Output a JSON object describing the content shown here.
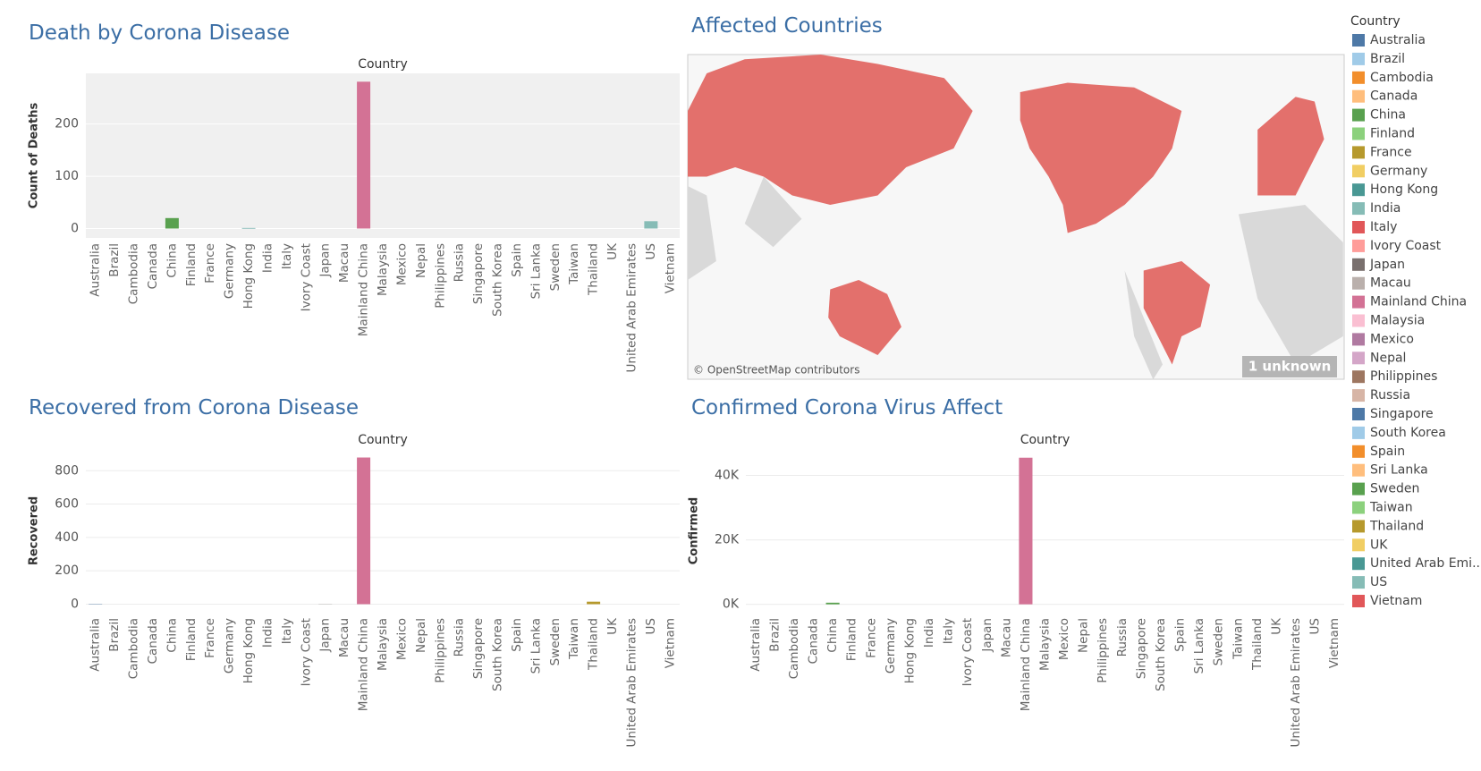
{
  "chart_data": [
    {
      "type": "bar",
      "title": "Death by Corona Disease",
      "x_label": "Country",
      "y_label": "Count of Deaths",
      "categories": [
        "Australia",
        "Brazil",
        "Cambodia",
        "Canada",
        "China",
        "Finland",
        "France",
        "Germany",
        "Hong Kong",
        "India",
        "Italy",
        "Ivory Coast",
        "Japan",
        "Macau",
        "Mainland China",
        "Malaysia",
        "Mexico",
        "Nepal",
        "Philippines",
        "Russia",
        "Singapore",
        "South Korea",
        "Spain",
        "Sri Lanka",
        "Sweden",
        "Taiwan",
        "Thailand",
        "UK",
        "United Arab Emirates",
        "US",
        "Vietnam"
      ],
      "values": [
        0,
        0,
        0,
        0,
        20,
        0,
        0,
        0,
        1,
        0,
        0,
        0,
        0,
        0,
        281,
        0,
        0,
        0,
        0,
        0,
        0,
        0,
        0,
        0,
        0,
        0,
        0,
        0,
        0,
        14,
        0
      ],
      "ylim": [
        -18,
        297
      ],
      "yticks": [
        0,
        100,
        200
      ],
      "grid": true,
      "plot_background": "#f0f0f0"
    },
    {
      "type": "bar",
      "title": "Recovered from Corona Disease",
      "x_label": "Country",
      "y_label": "Recovered",
      "categories": [
        "Australia",
        "Brazil",
        "Cambodia",
        "Canada",
        "China",
        "Finland",
        "France",
        "Germany",
        "Hong Kong",
        "India",
        "Italy",
        "Ivory Coast",
        "Japan",
        "Macau",
        "Mainland China",
        "Malaysia",
        "Mexico",
        "Nepal",
        "Philippines",
        "Russia",
        "Singapore",
        "South Korea",
        "Spain",
        "Sri Lanka",
        "Sweden",
        "Taiwan",
        "Thailand",
        "UK",
        "United Arab Emirates",
        "US",
        "Vietnam"
      ],
      "values": [
        2,
        0,
        0,
        0,
        0,
        0,
        0,
        0,
        0,
        0,
        0,
        0,
        1,
        0,
        879,
        0,
        0,
        0,
        0,
        0,
        0,
        0,
        0,
        0,
        0,
        0,
        15,
        0,
        0,
        0,
        0
      ],
      "ylim": [
        -51,
        930
      ],
      "yticks": [
        0,
        200,
        400,
        600,
        800
      ],
      "grid": true,
      "plot_background": "#ffffff"
    },
    {
      "type": "bar",
      "title": "Confirmed Corona Virus Affect",
      "x_label": "Country",
      "y_label": "Confirmed",
      "categories": [
        "Australia",
        "Brazil",
        "Cambodia",
        "Canada",
        "China",
        "Finland",
        "France",
        "Germany",
        "Hong Kong",
        "India",
        "Italy",
        "Ivory Coast",
        "Japan",
        "Macau",
        "Mainland China",
        "Malaysia",
        "Mexico",
        "Nepal",
        "Philippines",
        "Russia",
        "Singapore",
        "South Korea",
        "Spain",
        "Sri Lanka",
        "Sweden",
        "Taiwan",
        "Thailand",
        "UK",
        "United Arab Emirates",
        "US",
        "Vietnam"
      ],
      "values": [
        0,
        0,
        0,
        0,
        500,
        0,
        0,
        0,
        0,
        0,
        0,
        0,
        0,
        0,
        45500,
        0,
        0,
        0,
        0,
        0,
        0,
        0,
        0,
        0,
        0,
        0,
        0,
        0,
        0,
        0,
        0
      ],
      "ylim": [
        -2600,
        48200
      ],
      "yticks": [
        {
          "value": 0,
          "label": "0K"
        },
        {
          "value": 20000,
          "label": "20K"
        },
        {
          "value": 40000,
          "label": "40K"
        }
      ],
      "grid": true,
      "plot_background": "#ffffff"
    }
  ],
  "map": {
    "title": "Affected Countries",
    "attribution": "© OpenStreetMap contributors",
    "badge": "1 unknown"
  },
  "legend": {
    "title": "Country",
    "items": [
      {
        "name": "Australia",
        "color": "#4e79a7"
      },
      {
        "name": "Brazil",
        "color": "#a0cbe8"
      },
      {
        "name": "Cambodia",
        "color": "#f28e2b"
      },
      {
        "name": "Canada",
        "color": "#ffbe7d"
      },
      {
        "name": "China",
        "color": "#59a14f"
      },
      {
        "name": "Finland",
        "color": "#8cd17d"
      },
      {
        "name": "France",
        "color": "#b6992d"
      },
      {
        "name": "Germany",
        "color": "#f1ce63"
      },
      {
        "name": "Hong Kong",
        "color": "#499894"
      },
      {
        "name": "India",
        "color": "#86bcb6"
      },
      {
        "name": "Italy",
        "color": "#e15759"
      },
      {
        "name": "Ivory Coast",
        "color": "#ff9d9a"
      },
      {
        "name": "Japan",
        "color": "#79706e"
      },
      {
        "name": "Macau",
        "color": "#bab0ac"
      },
      {
        "name": "Mainland China",
        "color": "#d37295"
      },
      {
        "name": "Malaysia",
        "color": "#fabfd2"
      },
      {
        "name": "Mexico",
        "color": "#b07aa1"
      },
      {
        "name": "Nepal",
        "color": "#d4a6c8"
      },
      {
        "name": "Philippines",
        "color": "#9d7660"
      },
      {
        "name": "Russia",
        "color": "#d7b5a6"
      },
      {
        "name": "Singapore",
        "color": "#4e79a7"
      },
      {
        "name": "South Korea",
        "color": "#a0cbe8"
      },
      {
        "name": "Spain",
        "color": "#f28e2b"
      },
      {
        "name": "Sri Lanka",
        "color": "#ffbe7d"
      },
      {
        "name": "Sweden",
        "color": "#59a14f"
      },
      {
        "name": "Taiwan",
        "color": "#8cd17d"
      },
      {
        "name": "Thailand",
        "color": "#b6992d"
      },
      {
        "name": "UK",
        "color": "#f1ce63"
      },
      {
        "name": "United Arab Emi..",
        "color": "#499894"
      },
      {
        "name": "US",
        "color": "#86bcb6"
      },
      {
        "name": "Vietnam",
        "color": "#e15759"
      }
    ]
  }
}
